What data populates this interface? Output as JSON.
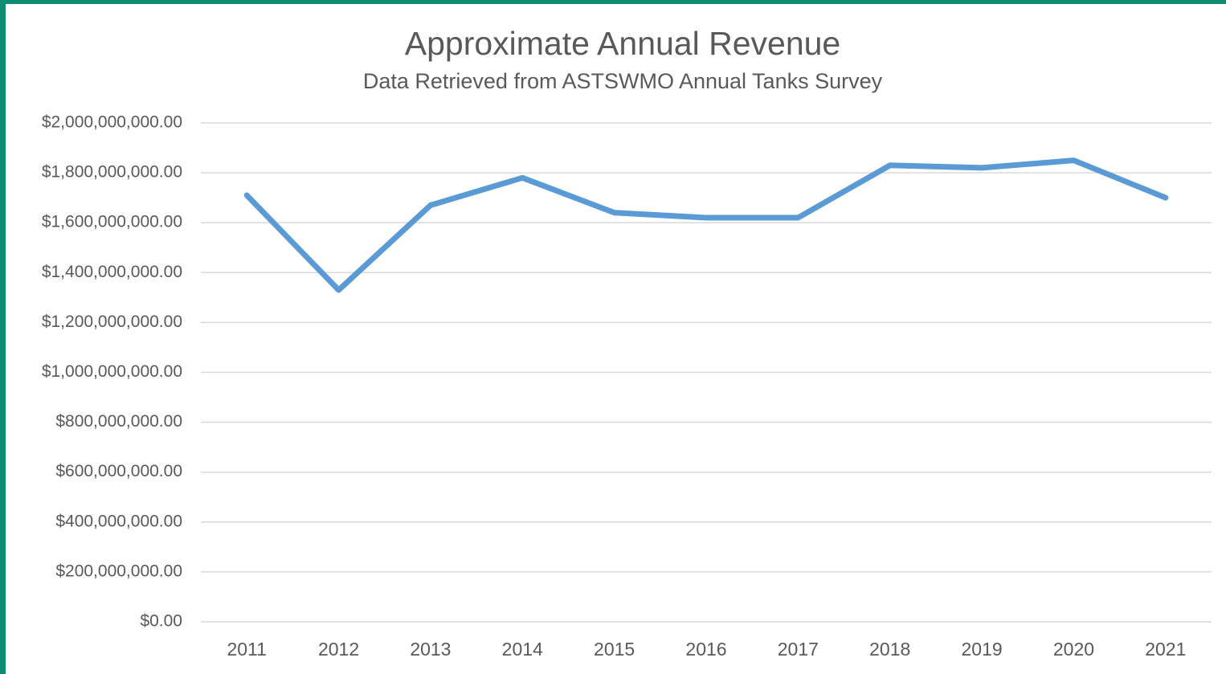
{
  "chart_data": {
    "type": "line",
    "title": "Approximate Annual Revenue",
    "subtitle": "Data Retrieved from ASTSWMO Annual Tanks Survey",
    "categories": [
      "2011",
      "2012",
      "2013",
      "2014",
      "2015",
      "2016",
      "2017",
      "2018",
      "2019",
      "2020",
      "2021"
    ],
    "series": [
      {
        "name": "Approximate Annual Revenue",
        "color": "#5b9bd5",
        "values": [
          1710000000,
          1330000000,
          1670000000,
          1780000000,
          1640000000,
          1620000000,
          1620000000,
          1830000000,
          1820000000,
          1850000000,
          1700000000
        ]
      }
    ],
    "ylim": [
      0,
      2000000000
    ],
    "yticks": [
      {
        "value": 0,
        "label": "$0.00"
      },
      {
        "value": 200000000,
        "label": "$200,000,000.00"
      },
      {
        "value": 400000000,
        "label": "$400,000,000.00"
      },
      {
        "value": 600000000,
        "label": "$600,000,000.00"
      },
      {
        "value": 800000000,
        "label": "$800,000,000.00"
      },
      {
        "value": 1000000000,
        "label": "$1,000,000,000.00"
      },
      {
        "value": 1200000000,
        "label": "$1,200,000,000.00"
      },
      {
        "value": 1400000000,
        "label": "$1,400,000,000.00"
      },
      {
        "value": 1600000000,
        "label": "$1,600,000,000.00"
      },
      {
        "value": 1800000000,
        "label": "$1,800,000,000.00"
      },
      {
        "value": 2000000000,
        "label": "$2,000,000,000.00"
      }
    ],
    "grid": true
  }
}
